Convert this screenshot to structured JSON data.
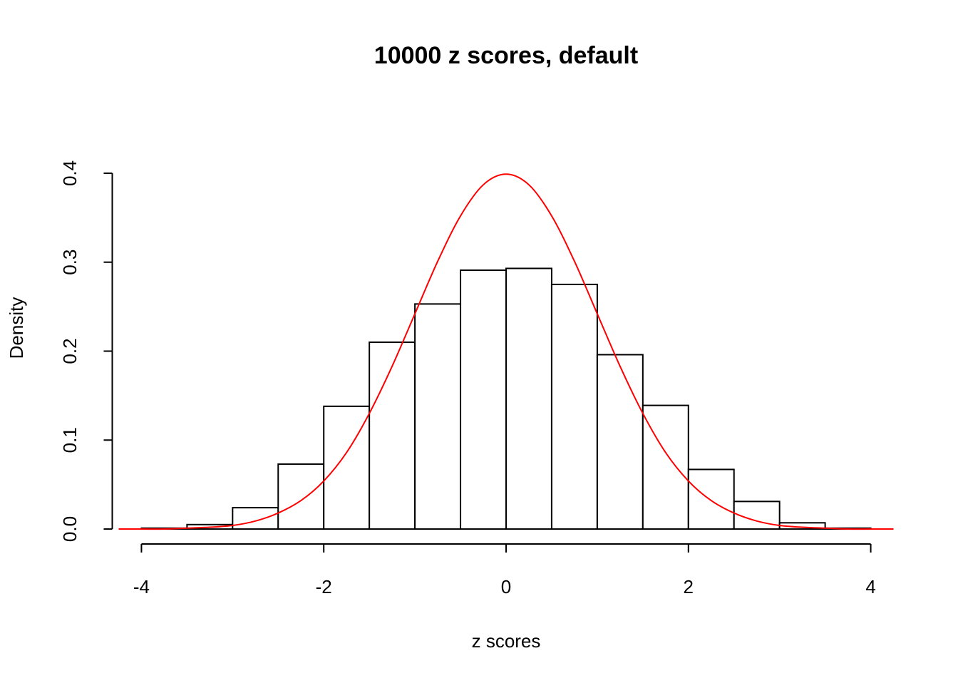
{
  "chart_data": {
    "type": "histogram",
    "title": "10000 z scores, default",
    "x_label": "z scores",
    "y_label": "Density",
    "bins": [
      -4,
      -3.5,
      -3,
      -2.5,
      -2,
      -1.5,
      -1,
      -0.5,
      0,
      0.5,
      1,
      1.5,
      2,
      2.5,
      3,
      3.5,
      4
    ],
    "values": [
      0.001,
      0.005,
      0.024,
      0.073,
      0.138,
      0.21,
      0.253,
      0.291,
      0.293,
      0.275,
      0.196,
      0.139,
      0.067,
      0.031,
      0.007,
      0.001
    ],
    "bar_fill": "#ffffff",
    "bar_stroke": "#000000",
    "curve": {
      "color": "#ff0000",
      "x": [
        -4.25,
        -4,
        -3.75,
        -3.5,
        -3.25,
        -3,
        -2.75,
        -2.5,
        -2.25,
        -2,
        -1.75,
        -1.5,
        -1.25,
        -1,
        -0.75,
        -0.5,
        -0.25,
        0,
        0.25,
        0.5,
        0.75,
        1,
        1.25,
        1.5,
        1.75,
        2,
        2.25,
        2.5,
        2.75,
        3,
        3.25,
        3.5,
        3.75,
        4,
        4.25
      ],
      "values": [
        0,
        0,
        0,
        0.001,
        0.002,
        0.004,
        0.009,
        0.018,
        0.032,
        0.054,
        0.086,
        0.13,
        0.183,
        0.242,
        0.301,
        0.352,
        0.387,
        0.399,
        0.387,
        0.352,
        0.301,
        0.242,
        0.183,
        0.13,
        0.086,
        0.054,
        0.032,
        0.018,
        0.009,
        0.004,
        0.002,
        0.001,
        0,
        0,
        0
      ]
    },
    "xlim": [
      -4.32,
      4.32
    ],
    "ylim": [
      -0.016,
      0.416
    ],
    "xticks": [
      -4,
      -2,
      0,
      2,
      4
    ],
    "yticks": [
      {
        "value": 0,
        "label": "0.0"
      },
      0.1,
      0.2,
      0.3,
      0.4
    ]
  }
}
